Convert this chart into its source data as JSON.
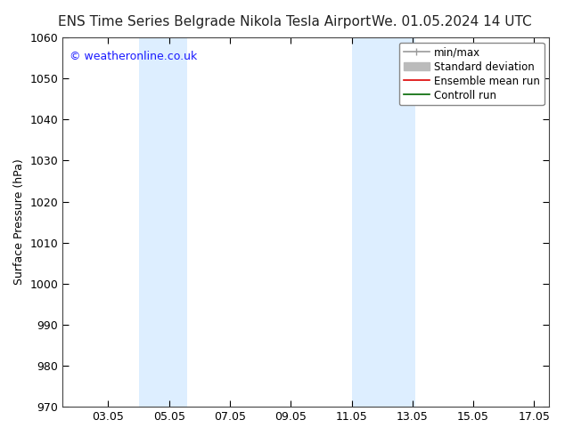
{
  "title_left": "ENS Time Series Belgrade Nikola Tesla Airport",
  "title_right": "We. 01.05.2024 14 UTC",
  "ylabel": "Surface Pressure (hPa)",
  "ylim": [
    970,
    1060
  ],
  "yticks": [
    970,
    980,
    990,
    1000,
    1010,
    1020,
    1030,
    1040,
    1050,
    1060
  ],
  "xlim": [
    1.5,
    17.5
  ],
  "xtick_labels": [
    "03.05",
    "05.05",
    "07.05",
    "09.05",
    "11.05",
    "13.05",
    "15.05",
    "17.05"
  ],
  "xtick_positions": [
    3,
    5,
    7,
    9,
    11,
    13,
    15,
    17
  ],
  "shade_bands": [
    {
      "x_start": 4.0,
      "x_end": 5.6,
      "color": "#ddeeff"
    },
    {
      "x_start": 11.0,
      "x_end": 13.1,
      "color": "#ddeeff"
    }
  ],
  "watermark_text": "© weatheronline.co.uk",
  "watermark_color": "#1a1aff",
  "legend_items": [
    {
      "label": "min/max",
      "color": "#999999",
      "lw": 1.2
    },
    {
      "label": "Standard deviation",
      "color": "#bbbbbb",
      "lw": 5
    },
    {
      "label": "Ensemble mean run",
      "color": "#dd0000",
      "lw": 1.2
    },
    {
      "label": "Controll run",
      "color": "#006600",
      "lw": 1.2
    }
  ],
  "background_color": "#ffffff",
  "plot_bg_color": "#ffffff",
  "title_fontsize": 11,
  "axis_label_fontsize": 9,
  "tick_fontsize": 9,
  "legend_fontsize": 8.5
}
